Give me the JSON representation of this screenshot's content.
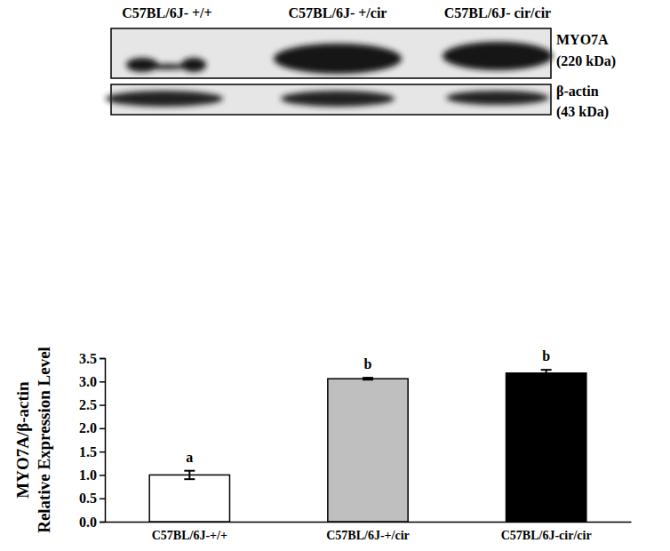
{
  "chart_data": {
    "type": "bar",
    "categories": [
      "C57BL/6J-+/+",
      "C57BL/6J-+/cir",
      "C57BL/6J-cir/cir"
    ],
    "values": [
      1.0,
      3.06,
      3.18
    ],
    "errors": [
      0.09,
      0.02,
      0.07
    ],
    "significance": [
      "a",
      "b",
      "b"
    ],
    "colors": [
      "#ffffff",
      "#bfbfbf",
      "#000000"
    ],
    "y_label": [
      "MYO7A/β-actin",
      "Relative Expression Level"
    ],
    "ylim": [
      0,
      3.5
    ],
    "yticks": [
      {
        "value": 0,
        "label": "0.0"
      },
      {
        "value": 0.5,
        "label": "0.5"
      },
      {
        "value": 1,
        "label": "1.0"
      },
      {
        "value": 1.5,
        "label": "1.5"
      },
      {
        "value": 2,
        "label": "2.0"
      },
      {
        "value": 2.5,
        "label": "2.5"
      },
      {
        "value": 3,
        "label": "3.0"
      },
      {
        "value": 3.5,
        "label": "3.5"
      }
    ],
    "grid": false,
    "blot": {
      "lanes": [
        "C57BL/6J- +/+",
        "C57BL/6J- +/cir",
        "C57BL/6J- cir/cir"
      ],
      "rows": [
        {
          "name": "MYO7A",
          "size": "(220 kDa)"
        },
        {
          "name": "β-actin",
          "size": "(43 kDa)"
        }
      ]
    }
  }
}
